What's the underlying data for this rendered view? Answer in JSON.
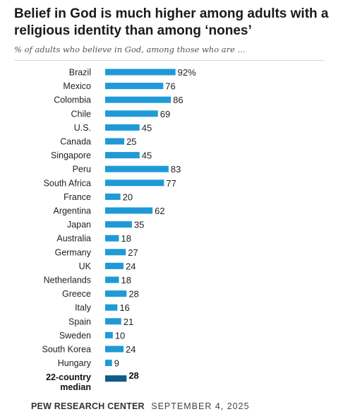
{
  "header": {
    "title": "Belief in God is much higher among adults with a religious identity than among ‘nones’",
    "subtitle": "% of adults who believe in God, among those who are ..."
  },
  "footer": {
    "org": "PEW RESEARCH CENTER",
    "date": "SEPTEMBER 4, 2025"
  },
  "colors": {
    "bar": "#1f9ad6",
    "median_bar": "#0f5c86"
  },
  "chart_data": {
    "type": "bar",
    "orientation": "horizontal",
    "categories": [
      "Brazil",
      "Mexico",
      "Colombia",
      "Chile",
      "U.S.",
      "Canada",
      "Singapore",
      "Peru",
      "South Africa",
      "France",
      "Argentina",
      "Japan",
      "Australia",
      "Germany",
      "UK",
      "Netherlands",
      "Greece",
      "Italy",
      "Spain",
      "Sweden",
      "South Korea",
      "Hungary"
    ],
    "values": [
      92,
      76,
      86,
      69,
      45,
      25,
      45,
      83,
      77,
      20,
      62,
      35,
      18,
      27,
      24,
      18,
      28,
      16,
      21,
      10,
      24,
      9
    ],
    "value_labels": [
      "92%",
      "76",
      "86",
      "69",
      "45",
      "25",
      "45",
      "83",
      "77",
      "20",
      "62",
      "35",
      "18",
      "27",
      "24",
      "18",
      "28",
      "16",
      "21",
      "10",
      "24",
      "9"
    ],
    "median": {
      "label_line1": "22-country",
      "label_line2": "median",
      "value": 28,
      "value_label": "28"
    },
    "xlim": [
      0,
      100
    ],
    "grid": false,
    "legend": "none"
  }
}
